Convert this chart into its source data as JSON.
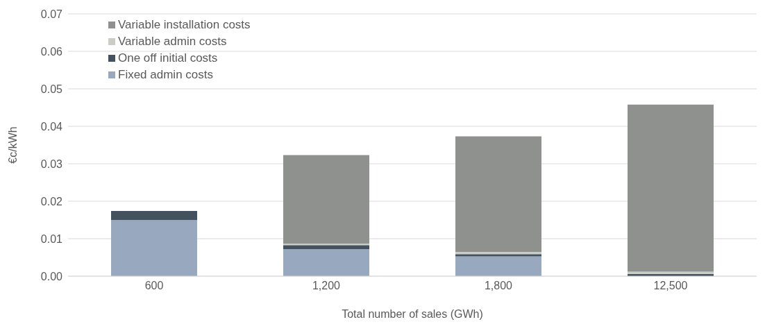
{
  "chart_data": {
    "type": "bar",
    "stacked": true,
    "xlabel": "Total  number of sales (GWh)",
    "ylabel": "€c/kWh",
    "categories": [
      "600",
      "1,200",
      "1,800",
      "12,500"
    ],
    "series": [
      {
        "name": "Fixed admin costs",
        "color": "#97a8bf",
        "values": [
          0.015,
          0.0072,
          0.0053,
          null
        ]
      },
      {
        "name": "One off initial costs",
        "color": "#44515f",
        "values": [
          0.0024,
          0.0011,
          0.0006,
          0.0006
        ]
      },
      {
        "name": "Variable admin costs",
        "color": "#c9cdc6",
        "values": [
          0,
          0.0004,
          0.0006,
          0.0006
        ]
      },
      {
        "name": "Variable installation costs",
        "color": "#8f918e",
        "values": [
          0,
          0.0236,
          0.0308,
          0.0446
        ]
      }
    ],
    "ylim": [
      0,
      0.07
    ],
    "yticks": [
      {
        "value": 0,
        "label": "0.00"
      },
      0.01,
      0.02,
      0.03,
      0.04,
      0.05,
      0.06,
      0.07
    ],
    "grid": "y",
    "legend": "top left"
  }
}
